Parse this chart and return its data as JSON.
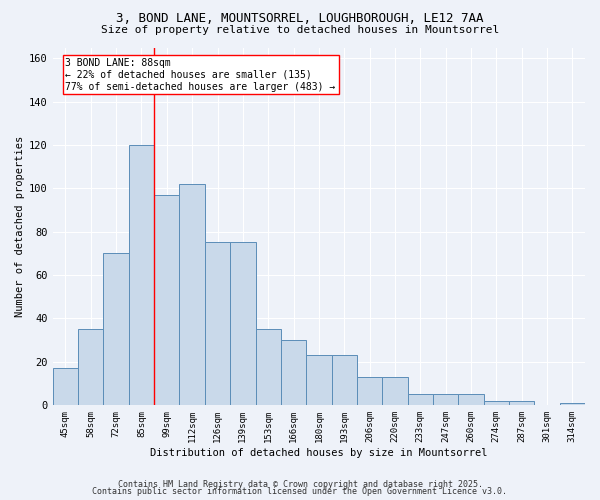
{
  "title1": "3, BOND LANE, MOUNTSORREL, LOUGHBOROUGH, LE12 7AA",
  "title2": "Size of property relative to detached houses in Mountsorrel",
  "xlabel": "Distribution of detached houses by size in Mountsorrel",
  "ylabel": "Number of detached properties",
  "categories": [
    "45sqm",
    "58sqm",
    "72sqm",
    "85sqm",
    "99sqm",
    "112sqm",
    "126sqm",
    "139sqm",
    "153sqm",
    "166sqm",
    "180sqm",
    "193sqm",
    "206sqm",
    "220sqm",
    "233sqm",
    "247sqm",
    "260sqm",
    "274sqm",
    "287sqm",
    "301sqm",
    "314sqm"
  ],
  "values": [
    17,
    35,
    70,
    120,
    97,
    102,
    75,
    75,
    35,
    30,
    23,
    23,
    13,
    13,
    5,
    5,
    5,
    2,
    2,
    0,
    1
  ],
  "bar_color": "#c9d9ea",
  "bar_edge_color": "#5b8db8",
  "red_line_index": 3.5,
  "annotation_text": "3 BOND LANE: 88sqm\n← 22% of detached houses are smaller (135)\n77% of semi-detached houses are larger (483) →",
  "ylim": [
    0,
    165
  ],
  "yticks": [
    0,
    20,
    40,
    60,
    80,
    100,
    120,
    140,
    160
  ],
  "background_color": "#eef2f9",
  "grid_color": "white",
  "footer1": "Contains HM Land Registry data © Crown copyright and database right 2025.",
  "footer2": "Contains public sector information licensed under the Open Government Licence v3.0."
}
